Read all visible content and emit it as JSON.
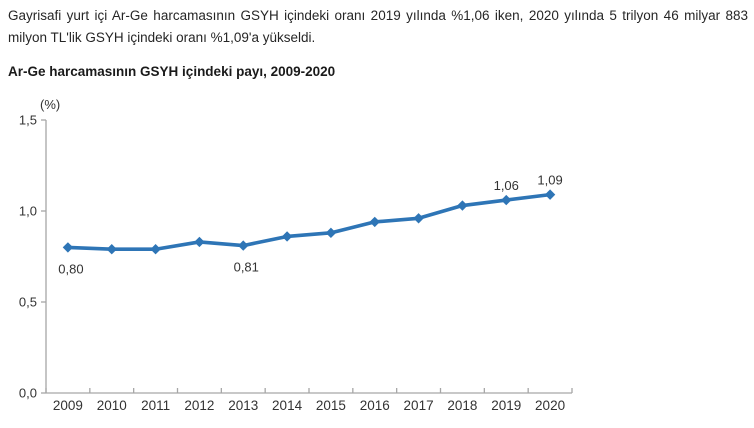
{
  "intro": {
    "text": "Gayrisafi yurt içi Ar-Ge harcamasının GSYH içindeki oranı 2019 yılında %1,06 iken, 2020 yılında 5 trilyon 46 milyar 883 milyon TL'lik GSYH içindeki oranı %1,09'a yükseldi."
  },
  "chart": {
    "title": "Ar-Ge harcamasının GSYH içindeki payı, 2009-2020"
  },
  "chart_data": {
    "type": "line",
    "title": "Ar-Ge harcamasının GSYH içindeki payı, 2009-2020",
    "ylabel": "(%)",
    "xlabel": "",
    "categories": [
      "2009",
      "2010",
      "2011",
      "2012",
      "2013",
      "2014",
      "2015",
      "2016",
      "2017",
      "2018",
      "2019",
      "2020"
    ],
    "values": [
      0.8,
      0.79,
      0.79,
      0.83,
      0.81,
      0.86,
      0.88,
      0.94,
      0.96,
      1.03,
      1.06,
      1.09
    ],
    "ylim": [
      0,
      1.5
    ],
    "ytick_values": [
      0,
      0.5,
      1.0,
      1.5
    ],
    "ytick_labels": [
      "0,0",
      "0,5",
      "1,0",
      "1,5"
    ],
    "point_labels": [
      {
        "category": "2009",
        "text": "0,80",
        "placement": "below"
      },
      {
        "category": "2013",
        "text": "0,81",
        "placement": "below"
      },
      {
        "category": "2019",
        "text": "1,06",
        "placement": "above"
      },
      {
        "category": "2020",
        "text": "1,09",
        "placement": "above"
      }
    ],
    "grid": false,
    "legend_position": "none",
    "colors": {
      "line": "#2E75B6",
      "marker": "#2E75B6",
      "axis": "#A6A6A6",
      "tick_text": "#333333",
      "label_text": "#333333"
    }
  }
}
